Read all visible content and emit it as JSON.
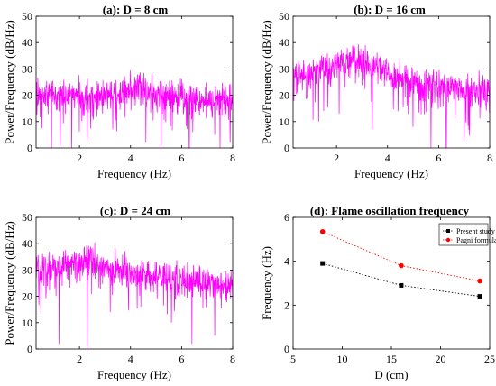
{
  "chart_data": [
    {
      "type": "line",
      "title": "(a): D = 8 cm",
      "xlabel": "Frequency (Hz)",
      "ylabel": "Power/Frequency (dB/Hz)",
      "xlim": [
        0.3,
        8
      ],
      "ylim": [
        0,
        50
      ],
      "xticks": [
        2,
        4,
        6,
        8
      ],
      "yticks": [
        0,
        10,
        20,
        30,
        40,
        50
      ],
      "line_color": "#ff00ff",
      "series": [
        {
          "x": [
            0.3,
            1,
            2,
            3,
            3.5,
            3.8,
            4,
            4.2,
            4.5,
            5,
            6,
            7,
            8
          ],
          "values": [
            20,
            20,
            19.5,
            19.5,
            20.5,
            22,
            23,
            22.5,
            21.5,
            20,
            19,
            18.5,
            18
          ],
          "band": 6,
          "dips": [
            [
              0.9,
              0
            ],
            [
              1.7,
              0
            ],
            [
              2.3,
              3
            ],
            [
              3.3,
              7
            ],
            [
              4.6,
              2
            ],
            [
              5.2,
              0
            ],
            [
              6.3,
              0
            ],
            [
              7.5,
              0
            ],
            [
              7.9,
              2
            ]
          ]
        }
      ]
    },
    {
      "type": "line",
      "title": "(b): D = 16 cm",
      "xlabel": "Frequency (Hz)",
      "ylabel": "Power/Frequency (dB/Hz)",
      "xlim": [
        0.3,
        8
      ],
      "ylim": [
        0,
        50
      ],
      "xticks": [
        2,
        4,
        6,
        8
      ],
      "yticks": [
        0,
        10,
        20,
        30,
        40,
        50
      ],
      "line_color": "#ff00ff",
      "series": [
        {
          "x": [
            0.3,
            1,
            1.5,
            2,
            2.5,
            2.8,
            3,
            3.5,
            4,
            5,
            6,
            7,
            8
          ],
          "values": [
            28,
            28,
            29,
            30.5,
            33,
            34,
            33,
            30,
            28,
            25,
            23,
            22,
            21
          ],
          "band": 6,
          "dips": [
            [
              1.3,
              10
            ],
            [
              2.1,
              13
            ],
            [
              3.4,
              7
            ],
            [
              5.0,
              8
            ],
            [
              5.7,
              0
            ],
            [
              6.3,
              0
            ],
            [
              7.0,
              3
            ]
          ]
        }
      ]
    },
    {
      "type": "line",
      "title": "(c): D = 24 cm",
      "xlabel": "Frequency (Hz)",
      "ylabel": "Power/Frequency (dB/Hz)",
      "xlim": [
        0.3,
        8
      ],
      "ylim": [
        0,
        50
      ],
      "xticks": [
        2,
        4,
        6,
        8
      ],
      "yticks": [
        0,
        10,
        20,
        30,
        40,
        50
      ],
      "line_color": "#ff00ff",
      "series": [
        {
          "x": [
            0.3,
            1,
            2,
            2.4,
            3,
            4,
            5,
            6,
            7,
            8
          ],
          "values": [
            30,
            31,
            32,
            34,
            31,
            29,
            27.5,
            26,
            25,
            24
          ],
          "band": 6,
          "dips": [
            [
              0.5,
              14
            ],
            [
              1.2,
              2
            ],
            [
              2.3,
              0
            ],
            [
              3.2,
              14
            ],
            [
              5.6,
              10
            ],
            [
              6.4,
              2
            ],
            [
              7.3,
              5
            ]
          ]
        }
      ]
    },
    {
      "type": "line",
      "title": "(d): Flame oscillation frequency",
      "xlabel": "D (cm)",
      "ylabel": "Frequency (Hz)",
      "xlim": [
        5,
        25
      ],
      "ylim": [
        0,
        6
      ],
      "xticks": [
        5,
        10,
        15,
        20,
        25
      ],
      "yticks": [
        0,
        2,
        4,
        6
      ],
      "legend_position": "top-right",
      "series": [
        {
          "name": "Present study",
          "x": [
            8,
            16,
            24
          ],
          "values": [
            3.9,
            2.9,
            2.4
          ],
          "color": "#000000",
          "marker": "square"
        },
        {
          "name": "Pagni formula",
          "x": [
            8,
            16,
            24
          ],
          "values": [
            5.35,
            3.8,
            3.1
          ],
          "color": "#ff0000",
          "marker": "circle"
        }
      ]
    }
  ]
}
